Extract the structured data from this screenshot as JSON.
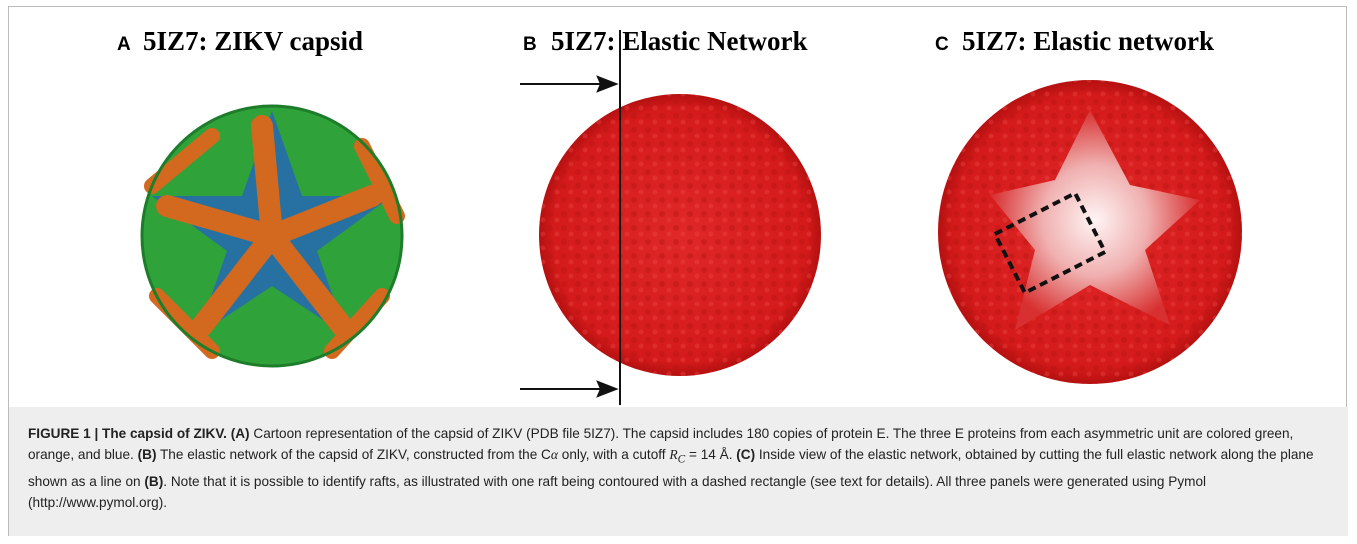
{
  "panels": [
    {
      "letter": "A",
      "title": "5IZ7: ZIKV capsid"
    },
    {
      "letter": "B",
      "title": "5IZ7: Elastic Network"
    },
    {
      "letter": "C",
      "title": "5IZ7: Elastic network"
    }
  ],
  "caption": {
    "runs": [
      "FIGURE 1 | The capsid of ZIKV. (A)",
      " Cartoon representation of the capsid of ZIKV (PDB file 5IZ7). The capsid includes 180 copies of protein E. The three E proteins from each asymmetric unit are colored green, orange, and blue. ",
      "(B)",
      " The elastic network of the capsid of ZIKV, constructed from the C",
      "α",
      " only, with a cutoff ",
      "R",
      "C",
      " = 14 Å. ",
      "(C)",
      " Inside view of the elastic network, obtained by cutting the full elastic network along the plane shown as a line on ",
      "(B)",
      ". Note that it is possible to identify rafts, as illustrated with one raft being contoured with a dashed rectangle (see text for details). All three panels were generated using Pymol (http://www.pymol.org)."
    ]
  }
}
